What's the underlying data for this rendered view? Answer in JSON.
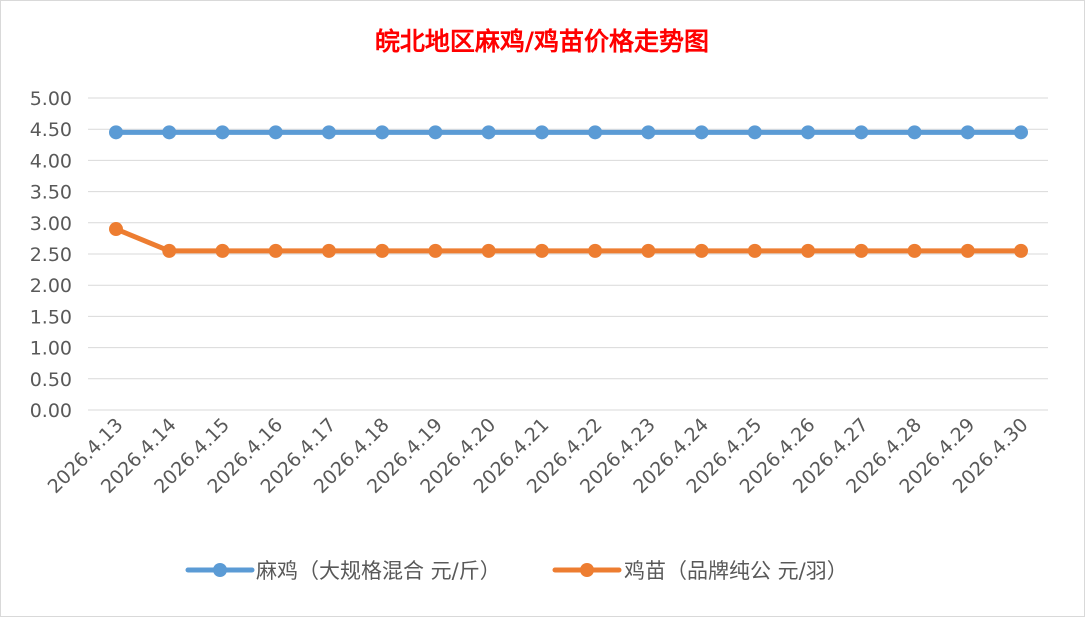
{
  "chart_data": {
    "type": "line",
    "title": "皖北地区麻鸡/鸡苗价格走势图",
    "title_color": "#ff0000",
    "categories": [
      "2026.4.13",
      "2026.4.14",
      "2026.4.15",
      "2026.4.16",
      "2026.4.17",
      "2026.4.18",
      "2026.4.19",
      "2026.4.20",
      "2026.4.21",
      "2026.4.22",
      "2026.4.23",
      "2026.4.24",
      "2026.4.25",
      "2026.4.26",
      "2026.4.27",
      "2026.4.28",
      "2026.4.29",
      "2026.4.30"
    ],
    "series": [
      {
        "name": "麻鸡（大规格混合 元/斤）",
        "color": "#5b9bd5",
        "values": [
          4.45,
          4.45,
          4.45,
          4.45,
          4.45,
          4.45,
          4.45,
          4.45,
          4.45,
          4.45,
          4.45,
          4.45,
          4.45,
          4.45,
          4.45,
          4.45,
          4.45,
          4.45
        ]
      },
      {
        "name": "鸡苗（品牌纯公 元/羽）",
        "color": "#ed7d31",
        "values": [
          2.9,
          2.55,
          2.55,
          2.55,
          2.55,
          2.55,
          2.55,
          2.55,
          2.55,
          2.55,
          2.55,
          2.55,
          2.55,
          2.55,
          2.55,
          2.55,
          2.55,
          2.55
        ]
      }
    ],
    "y_ticks": [
      "0.00",
      "0.50",
      "1.00",
      "1.50",
      "2.00",
      "2.50",
      "3.00",
      "3.50",
      "4.00",
      "4.50",
      "5.00"
    ],
    "ylim": [
      0,
      5
    ],
    "grid": true,
    "legend_position": "bottom"
  }
}
